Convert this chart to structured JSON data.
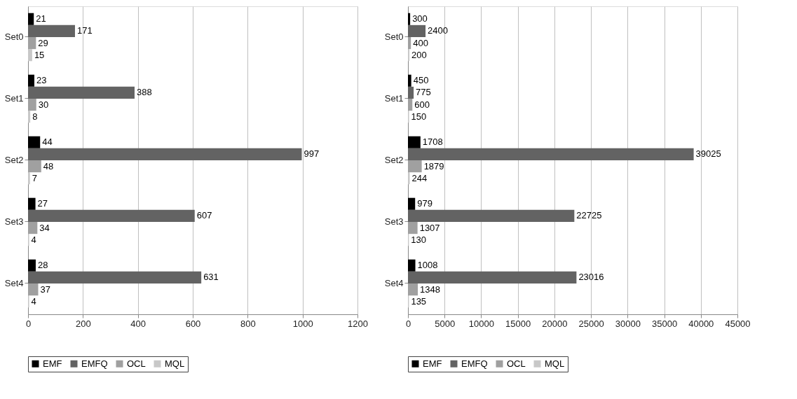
{
  "chart_data": [
    {
      "type": "bar",
      "orientation": "horizontal",
      "categories": [
        "Set0",
        "Set1",
        "Set2",
        "Set3",
        "Set4"
      ],
      "series": [
        {
          "name": "EMF",
          "color": "#000000",
          "values": [
            21,
            23,
            44,
            27,
            28
          ]
        },
        {
          "name": "EMFQ",
          "color": "#636363",
          "values": [
            171,
            388,
            997,
            607,
            631
          ]
        },
        {
          "name": "OCL",
          "color": "#a0a0a0",
          "values": [
            29,
            30,
            48,
            34,
            37
          ]
        },
        {
          "name": "MQL",
          "color": "#c8c8c8",
          "values": [
            15,
            8,
            7,
            4,
            4
          ]
        }
      ],
      "xlim": [
        0,
        1200
      ],
      "xticks": [
        0,
        200,
        400,
        600,
        800,
        1000,
        1200
      ],
      "grid": "x",
      "legend": "bottom",
      "data_labels": true
    },
    {
      "type": "bar",
      "orientation": "horizontal",
      "categories": [
        "Set0",
        "Set1",
        "Set2",
        "Set3",
        "Set4"
      ],
      "series": [
        {
          "name": "EMF",
          "color": "#000000",
          "values": [
            300,
            450,
            1708,
            979,
            1008
          ]
        },
        {
          "name": "EMFQ",
          "color": "#636363",
          "values": [
            2400,
            775,
            39025,
            22725,
            23016
          ]
        },
        {
          "name": "OCL",
          "color": "#a0a0a0",
          "values": [
            400,
            600,
            1879,
            1307,
            1348
          ]
        },
        {
          "name": "MQL",
          "color": "#c8c8c8",
          "values": [
            200,
            150,
            244,
            130,
            135
          ]
        }
      ],
      "xlim": [
        0,
        45000
      ],
      "xticks": [
        0,
        5000,
        10000,
        15000,
        20000,
        25000,
        30000,
        35000,
        40000,
        45000
      ],
      "grid": "x",
      "legend": "bottom",
      "data_labels": true
    }
  ]
}
